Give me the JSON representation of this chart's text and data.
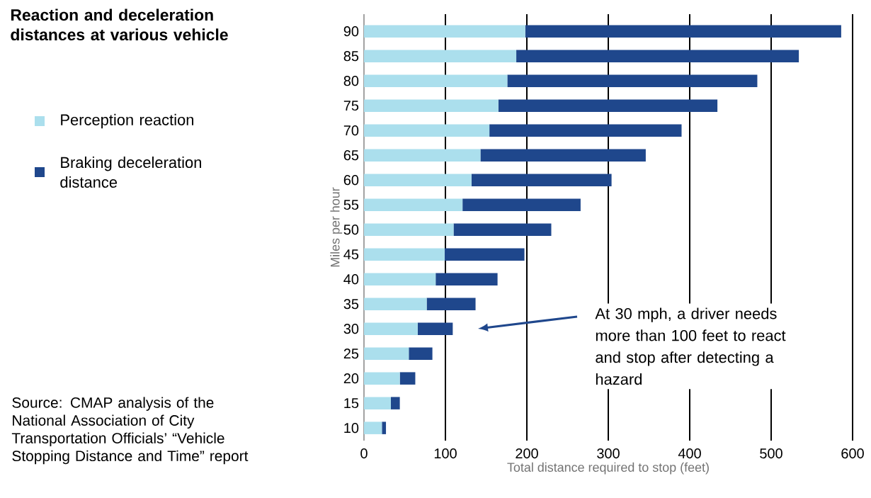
{
  "chart_data": {
    "type": "bar",
    "orientation": "horizontal",
    "stacked": true,
    "title": "Reaction and deceleration distances at various vehicle",
    "xlabel": "Total distance required to stop (feet)",
    "ylabel": "Miles per hour",
    "categories": [
      "90",
      "85",
      "80",
      "75",
      "70",
      "65",
      "60",
      "55",
      "50",
      "45",
      "40",
      "35",
      "30",
      "25",
      "20",
      "15",
      "10"
    ],
    "series": [
      {
        "name": "Perception reaction",
        "color": "#abdfed",
        "values": [
          198,
          187,
          176,
          165,
          154,
          143,
          132,
          121,
          110,
          99,
          88,
          77,
          66,
          55,
          44,
          33,
          22
        ]
      },
      {
        "name": "Braking deceleration distance",
        "color": "#1f478c",
        "values": [
          388,
          347,
          307,
          269,
          236,
          203,
          172,
          145,
          120,
          98,
          76,
          60,
          43,
          29,
          19,
          11,
          5
        ]
      }
    ],
    "xlim": [
      0,
      600
    ],
    "xticks": [
      0,
      100,
      200,
      300,
      400,
      500,
      600
    ],
    "grid": "x",
    "legend": "left",
    "annotations": [
      "At 30 mph, a driver needs more than 100 feet to react and stop after detecting a hazard",
      "Source: CMAP analysis of the National Association of City Transportation Officials’ “Vehicle Stopping Distance and Time” report"
    ]
  }
}
